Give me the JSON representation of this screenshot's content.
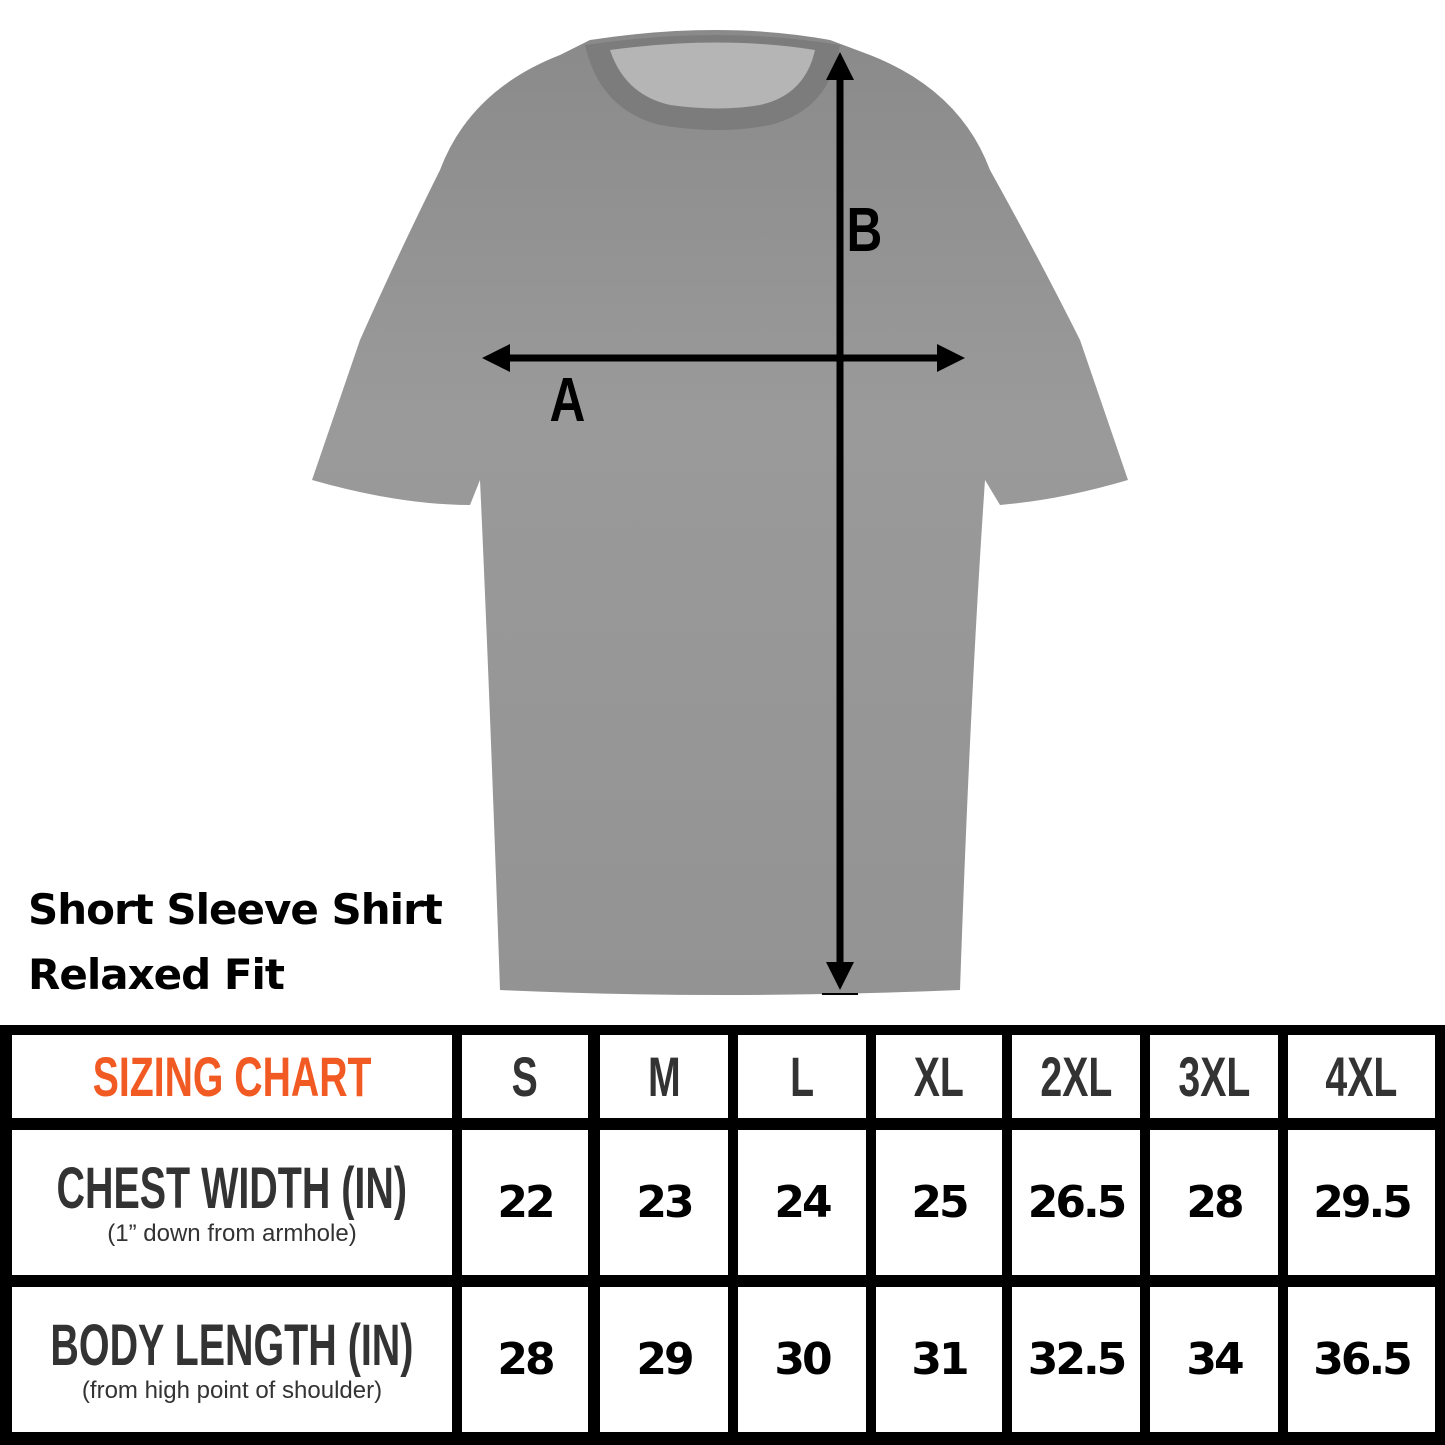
{
  "product": {
    "title_line1": "Short Sleeve Shirt",
    "title_line2": "Relaxed Fit",
    "shirt_color": "#8f8f8f"
  },
  "measure_labels": {
    "a": "A",
    "b": "B"
  },
  "table": {
    "heading": "SIZING CHART",
    "heading_color": "#f15a22",
    "sizes": [
      "S",
      "M",
      "L",
      "XL",
      "2XL",
      "3XL",
      "4XL"
    ],
    "rows": [
      {
        "label": "CHEST WIDTH (IN)",
        "sublabel": "(1” down from armhole)",
        "values": [
          "22",
          "23",
          "24",
          "25",
          "26.5",
          "28",
          "29.5"
        ]
      },
      {
        "label": "BODY LENGTH (IN)",
        "sublabel": "(from high point of shoulder)",
        "values": [
          "28",
          "29",
          "30",
          "31",
          "32.5",
          "34",
          "36.5"
        ]
      }
    ]
  }
}
